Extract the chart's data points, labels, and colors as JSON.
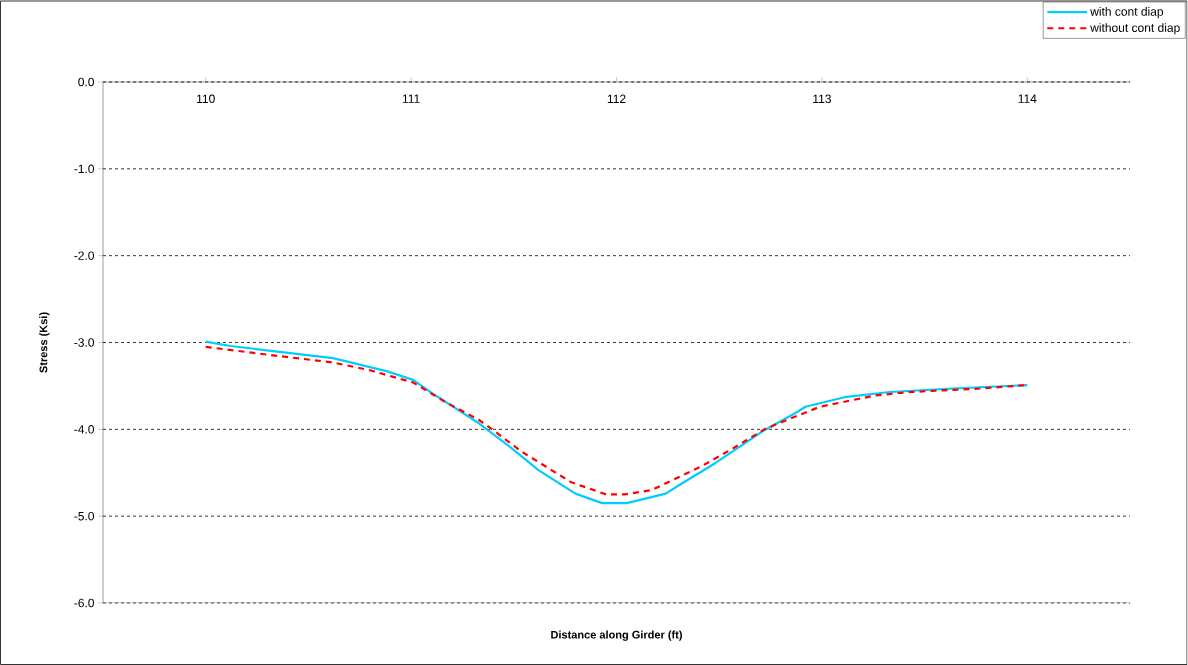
{
  "chart_data": {
    "type": "line",
    "xlabel": "Distance along Girder (ft)",
    "ylabel": "Stress (Ksi)",
    "xlim": [
      109.5,
      114.5
    ],
    "xticks": [
      110,
      111,
      112,
      113,
      114
    ],
    "ylim": [
      -6,
      0
    ],
    "yticks": [
      {
        "value": -6,
        "label": "-6.0"
      },
      {
        "value": -5,
        "label": "-5.0"
      },
      {
        "value": -4,
        "label": "-4.0"
      },
      {
        "value": -3,
        "label": "-3.0"
      },
      {
        "value": -2,
        "label": "-2.0"
      },
      {
        "value": -1,
        "label": "-1.0"
      },
      {
        "value": 0,
        "label": "0.0"
      }
    ],
    "grid": "y",
    "legend": "top right",
    "marker": "none",
    "series": [
      {
        "name": "with cont diap",
        "color": "#00ccff",
        "line_style": "solid",
        "x": [
          110.0,
          110.12,
          110.62,
          110.88,
          111.01,
          111.1,
          111.33,
          111.48,
          111.62,
          111.8,
          111.93,
          112.05,
          112.24,
          112.3,
          112.48,
          112.72,
          112.88,
          112.92,
          113.11,
          113.33,
          113.64,
          114.0
        ],
        "values": [
          -2.99,
          -3.04,
          -3.18,
          -3.33,
          -3.43,
          -3.58,
          -3.93,
          -4.2,
          -4.47,
          -4.74,
          -4.85,
          -4.85,
          -4.74,
          -4.65,
          -4.39,
          -4.01,
          -3.8,
          -3.74,
          -3.63,
          -3.57,
          -3.53,
          -3.49
        ]
      },
      {
        "name": "without cont diap",
        "color": "#ff0000",
        "line_style": "dashed",
        "x": [
          110.0,
          110.2,
          110.37,
          110.62,
          110.8,
          111.01,
          111.17,
          111.33,
          111.4,
          111.54,
          111.78,
          111.95,
          112.04,
          112.17,
          112.41,
          112.56,
          112.72,
          112.8,
          112.99,
          113.26,
          113.43,
          113.77,
          114.0
        ],
        "values": [
          -3.05,
          -3.11,
          -3.16,
          -3.23,
          -3.32,
          -3.46,
          -3.69,
          -3.89,
          -4.01,
          -4.26,
          -4.61,
          -4.75,
          -4.75,
          -4.7,
          -4.43,
          -4.23,
          -4.0,
          -3.92,
          -3.74,
          -3.61,
          -3.57,
          -3.53,
          -3.49
        ]
      }
    ]
  }
}
